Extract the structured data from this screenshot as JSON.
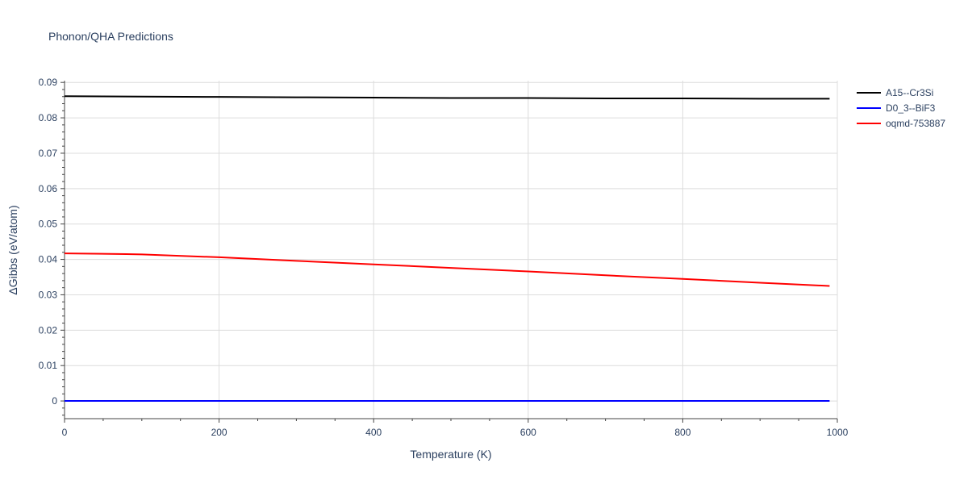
{
  "chart_data": {
    "type": "line",
    "title": "Phonon/QHA Predictions",
    "xlabel": "Temperature (K)",
    "ylabel": "ΔGibbs (eV/atom)",
    "xlim": [
      0,
      1000
    ],
    "ylim": [
      -0.005,
      0.0905
    ],
    "xticks": [
      0,
      200,
      400,
      600,
      800,
      1000
    ],
    "xtick_labels": [
      "0",
      "200",
      "400",
      "600",
      "800",
      "1000"
    ],
    "yticks": [
      0,
      0.01,
      0.02,
      0.03,
      0.04,
      0.05,
      0.06,
      0.07,
      0.08,
      0.09
    ],
    "ytick_labels": [
      "0",
      "0.01",
      "0.02",
      "0.03",
      "0.04",
      "0.05",
      "0.06",
      "0.07",
      "0.08",
      "0.09"
    ],
    "grid": true,
    "legend_position": "top-right",
    "series": [
      {
        "name": "A15--Cr3Si",
        "color": "#000000",
        "x": [
          0,
          100,
          200,
          300,
          400,
          500,
          600,
          700,
          800,
          900,
          990
        ],
        "y": [
          0.0861,
          0.086,
          0.0859,
          0.0858,
          0.0857,
          0.0856,
          0.0856,
          0.0855,
          0.0855,
          0.0854,
          0.0854
        ]
      },
      {
        "name": "D0_3--BiF3",
        "color": "#0000ff",
        "x": [
          0,
          100,
          200,
          300,
          400,
          500,
          600,
          700,
          800,
          900,
          990
        ],
        "y": [
          0,
          0,
          0,
          0,
          0,
          0,
          0,
          0,
          0,
          0,
          0
        ]
      },
      {
        "name": "oqmd-753887",
        "color": "#ff0000",
        "x": [
          0,
          80,
          100,
          200,
          300,
          400,
          500,
          600,
          700,
          800,
          900,
          990
        ],
        "y": [
          0.0417,
          0.0415,
          0.0414,
          0.0406,
          0.0396,
          0.0386,
          0.0376,
          0.0366,
          0.0355,
          0.0345,
          0.0334,
          0.0325
        ]
      }
    ]
  }
}
